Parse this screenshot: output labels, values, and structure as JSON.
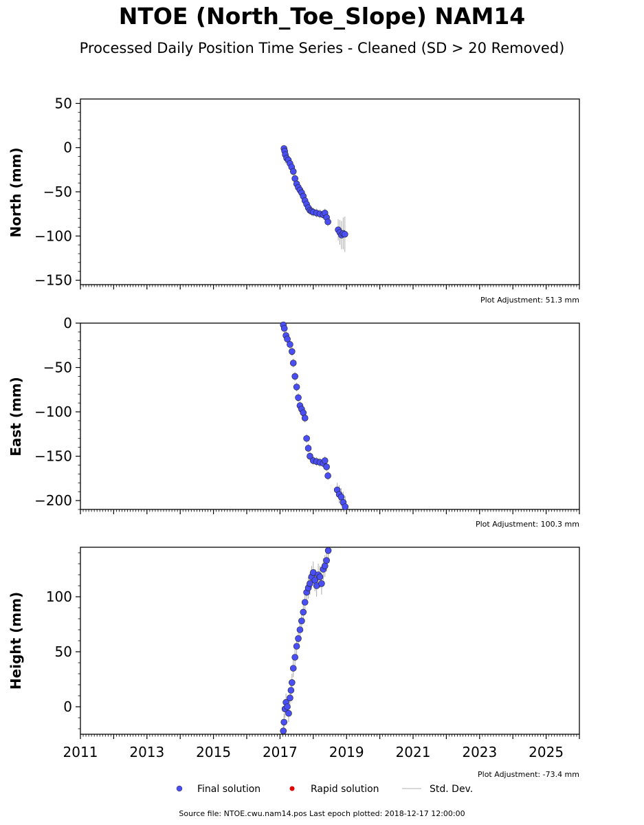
{
  "header": {
    "title": "NTOE (North_Toe_Slope) NAM14",
    "subtitle": "Processed Daily Position Time Series - Cleaned (SD > 20 Removed)"
  },
  "legend": {
    "final": "Final solution",
    "rapid": "Rapid solution",
    "std": "Std. Dev."
  },
  "footer": "Source file: NTOE.cwu.nam14.pos  Last epoch plotted: 2018-12-17 12:00:00",
  "colors": {
    "final": "#4a4ef5",
    "rapid": "#e00000",
    "stddev": "#555555"
  },
  "chart_data": [
    {
      "type": "scatter",
      "ylabel": "North (mm)",
      "ylim": [
        -155,
        55
      ],
      "yticks": [
        50,
        0,
        -50,
        -100,
        -150
      ],
      "xlim": [
        2011,
        2026
      ],
      "xticks": [],
      "adjustment": "Plot Adjustment: 51.3 mm",
      "series": [
        {
          "x": [
            2017.12,
            2017.14,
            2017.16,
            2017.2,
            2017.25,
            2017.3,
            2017.35,
            2017.4,
            2017.45,
            2017.5,
            2017.55,
            2017.6,
            2017.65,
            2017.7,
            2017.75,
            2017.8,
            2017.85,
            2017.9,
            2017.95,
            2018.0,
            2018.1,
            2018.2,
            2018.3,
            2018.35,
            2018.4,
            2018.44,
            2018.75,
            2018.8,
            2018.85,
            2018.9,
            2018.95
          ],
          "y": [
            -1,
            -4,
            -8,
            -12,
            -14,
            -18,
            -22,
            -27,
            -35,
            -41,
            -45,
            -48,
            -51,
            -55,
            -60,
            -64,
            -68,
            -71,
            -72,
            -73,
            -74,
            -75,
            -76,
            -74,
            -79,
            -84,
            -93,
            -96,
            -99,
            -97,
            -98
          ],
          "err": [
            4,
            6,
            10,
            6,
            5,
            5,
            5,
            5,
            5,
            5,
            5,
            5,
            5,
            5,
            5,
            5,
            5,
            5,
            5,
            5,
            5,
            5,
            5,
            5,
            5,
            5,
            12,
            14,
            16,
            18,
            20
          ]
        }
      ]
    },
    {
      "type": "scatter",
      "ylabel": "East (mm)",
      "ylim": [
        -210,
        0
      ],
      "yticks": [
        0,
        -50,
        -100,
        -150,
        -200
      ],
      "xlim": [
        2011,
        2026
      ],
      "xticks": [],
      "adjustment": "Plot Adjustment: 100.3 mm",
      "series": [
        {
          "x": [
            2017.1,
            2017.13,
            2017.18,
            2017.22,
            2017.3,
            2017.36,
            2017.4,
            2017.45,
            2017.5,
            2017.55,
            2017.6,
            2017.65,
            2017.7,
            2017.75,
            2017.8,
            2017.85,
            2017.9,
            2018.0,
            2018.1,
            2018.2,
            2018.3,
            2018.35,
            2018.4,
            2018.44,
            2018.72,
            2018.78,
            2018.84,
            2018.9,
            2018.96
          ],
          "y": [
            -2,
            -6,
            -14,
            -18,
            -24,
            -32,
            -45,
            -60,
            -72,
            -84,
            -93,
            -97,
            -101,
            -107,
            -130,
            -141,
            -150,
            -155,
            -156,
            -157,
            -158,
            -155,
            -162,
            -172,
            -188,
            -193,
            -196,
            -202,
            -207
          ],
          "err": [
            4,
            5,
            6,
            5,
            5,
            5,
            5,
            5,
            5,
            5,
            5,
            5,
            5,
            5,
            5,
            5,
            5,
            5,
            5,
            5,
            5,
            5,
            5,
            5,
            8,
            10,
            10,
            12,
            12
          ]
        }
      ]
    },
    {
      "type": "scatter",
      "ylabel": "Height (mm)",
      "ylim": [
        -25,
        145
      ],
      "yticks": [
        100,
        50,
        0
      ],
      "xlim": [
        2011,
        2026
      ],
      "xticks": [
        "2011",
        "2013",
        "2015",
        "2017",
        "2019",
        "2021",
        "2023",
        "2025"
      ],
      "adjustment": "Plot Adjustment: -73.4 mm",
      "series": [
        {
          "x": [
            2017.1,
            2017.12,
            2017.15,
            2017.18,
            2017.22,
            2017.26,
            2017.3,
            2017.33,
            2017.36,
            2017.4,
            2017.45,
            2017.5,
            2017.55,
            2017.6,
            2017.65,
            2017.7,
            2017.75,
            2017.8,
            2017.85,
            2017.9,
            2017.95,
            2018.0,
            2018.05,
            2018.1,
            2018.15,
            2018.2,
            2018.25,
            2018.3,
            2018.35,
            2018.4,
            2018.45
          ],
          "y": [
            -22,
            -14,
            -2,
            4,
            0,
            -6,
            8,
            15,
            22,
            35,
            45,
            55,
            62,
            70,
            78,
            86,
            95,
            104,
            108,
            112,
            118,
            122,
            115,
            110,
            120,
            118,
            112,
            125,
            128,
            133,
            142
          ],
          "err": [
            6,
            8,
            8,
            8,
            8,
            8,
            8,
            8,
            8,
            8,
            8,
            8,
            8,
            8,
            8,
            8,
            8,
            8,
            10,
            10,
            10,
            10,
            10,
            10,
            10,
            10,
            10,
            10,
            10,
            10,
            10
          ]
        }
      ]
    }
  ]
}
